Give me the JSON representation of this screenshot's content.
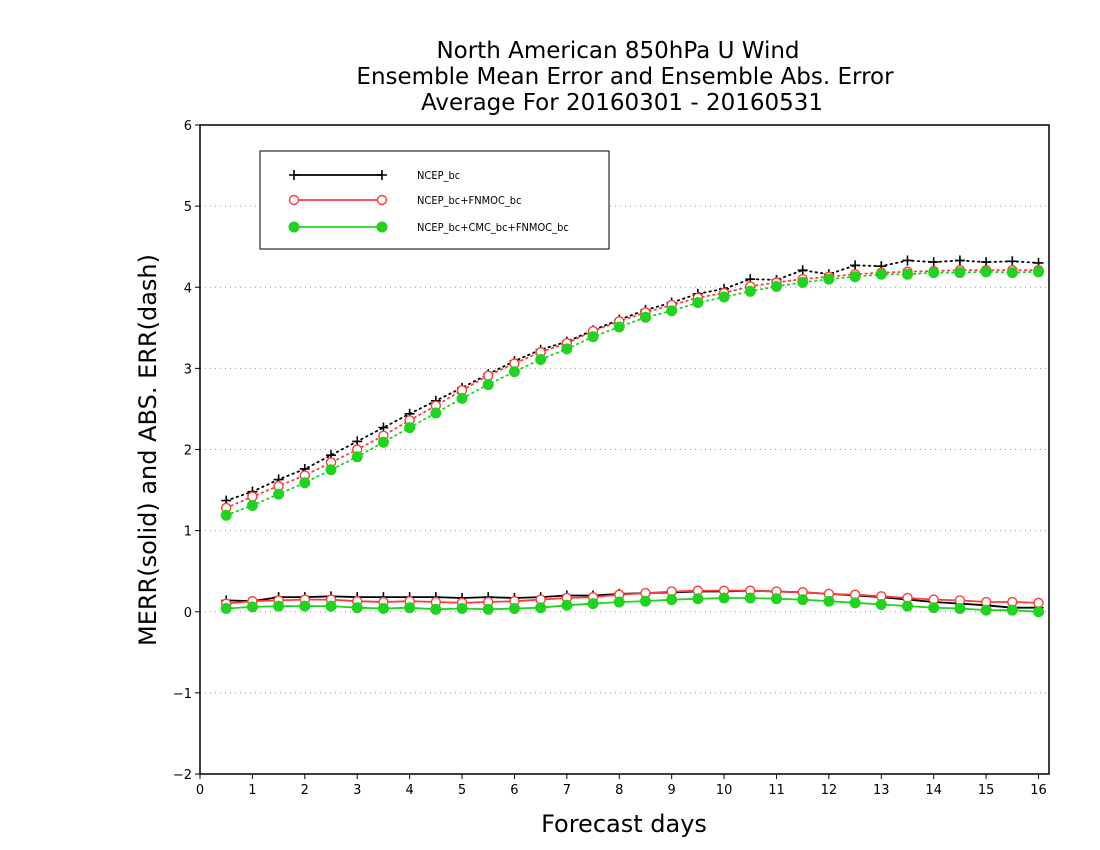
{
  "chart_data": {
    "type": "line",
    "title": [
      "North American 850hPa U Wind",
      "Ensemble Mean Error and Ensemble Abs. Error",
      "Average For 20160301 - 20160531"
    ],
    "xlabel": "Forecast days",
    "ylabel": "MERR(solid) and ABS. ERR(dash)",
    "xlim": [
      0,
      16.2
    ],
    "ylim": [
      -2,
      6
    ],
    "xticks": [
      0,
      1,
      2,
      3,
      4,
      5,
      6,
      7,
      8,
      9,
      10,
      11,
      12,
      13,
      14,
      15,
      16
    ],
    "yticks": [
      -2,
      -1,
      0,
      1,
      2,
      3,
      4,
      5,
      6
    ],
    "grid": "horizontal dotted",
    "legend_position": "top-left",
    "x": [
      0.5,
      1.0,
      1.5,
      2.0,
      2.5,
      3.0,
      3.5,
      4.0,
      4.5,
      5.0,
      5.5,
      6.0,
      6.5,
      7.0,
      7.5,
      8.0,
      8.5,
      9.0,
      9.5,
      10.0,
      10.5,
      11.0,
      11.5,
      12.0,
      12.5,
      13.0,
      13.5,
      14.0,
      14.5,
      15.0,
      15.5,
      16.0
    ],
    "series": [
      {
        "name": "NCEP_bc",
        "color": "#000000",
        "marker": "plus",
        "mean_error": [
          0.14,
          0.13,
          0.18,
          0.18,
          0.19,
          0.18,
          0.18,
          0.18,
          0.18,
          0.17,
          0.18,
          0.17,
          0.18,
          0.2,
          0.2,
          0.22,
          0.23,
          0.24,
          0.25,
          0.25,
          0.26,
          0.25,
          0.24,
          0.22,
          0.2,
          0.18,
          0.15,
          0.12,
          0.1,
          0.08,
          0.05,
          0.05
        ],
        "abs_error": [
          1.37,
          1.48,
          1.63,
          1.76,
          1.93,
          2.1,
          2.27,
          2.44,
          2.6,
          2.76,
          2.93,
          3.09,
          3.23,
          3.33,
          3.47,
          3.6,
          3.72,
          3.81,
          3.92,
          3.98,
          4.1,
          4.09,
          4.21,
          4.16,
          4.27,
          4.26,
          4.33,
          4.31,
          4.33,
          4.31,
          4.32,
          4.3
        ]
      },
      {
        "name": "NCEP_bc+FNMOC_bc",
        "color": "#ff3b3b",
        "marker": "open-circle",
        "mean_error": [
          0.1,
          0.13,
          0.14,
          0.15,
          0.15,
          0.13,
          0.12,
          0.13,
          0.12,
          0.11,
          0.12,
          0.13,
          0.15,
          0.17,
          0.18,
          0.21,
          0.23,
          0.25,
          0.26,
          0.26,
          0.26,
          0.25,
          0.24,
          0.22,
          0.21,
          0.19,
          0.17,
          0.15,
          0.14,
          0.12,
          0.12,
          0.11
        ],
        "abs_error": [
          1.28,
          1.42,
          1.55,
          1.68,
          1.84,
          2.0,
          2.17,
          2.36,
          2.54,
          2.73,
          2.91,
          3.06,
          3.2,
          3.31,
          3.46,
          3.58,
          3.69,
          3.78,
          3.87,
          3.93,
          4.01,
          4.06,
          4.1,
          4.13,
          4.16,
          4.18,
          4.19,
          4.2,
          4.21,
          4.21,
          4.21,
          4.21
        ]
      },
      {
        "name": "NCEP_bc+CMC_bc+FNMOC_bc",
        "color": "#1ed41e",
        "marker": "filled-circle",
        "mean_error": [
          0.04,
          0.06,
          0.07,
          0.07,
          0.07,
          0.05,
          0.04,
          0.05,
          0.03,
          0.04,
          0.03,
          0.04,
          0.05,
          0.08,
          0.1,
          0.12,
          0.13,
          0.15,
          0.16,
          0.17,
          0.17,
          0.16,
          0.15,
          0.13,
          0.11,
          0.09,
          0.07,
          0.05,
          0.04,
          0.02,
          0.02,
          0.0
        ],
        "abs_error": [
          1.19,
          1.31,
          1.45,
          1.59,
          1.75,
          1.91,
          2.09,
          2.27,
          2.45,
          2.63,
          2.8,
          2.96,
          3.11,
          3.24,
          3.39,
          3.51,
          3.63,
          3.71,
          3.81,
          3.88,
          3.95,
          4.01,
          4.06,
          4.1,
          4.13,
          4.16,
          4.16,
          4.18,
          4.18,
          4.19,
          4.18,
          4.19
        ]
      }
    ]
  }
}
